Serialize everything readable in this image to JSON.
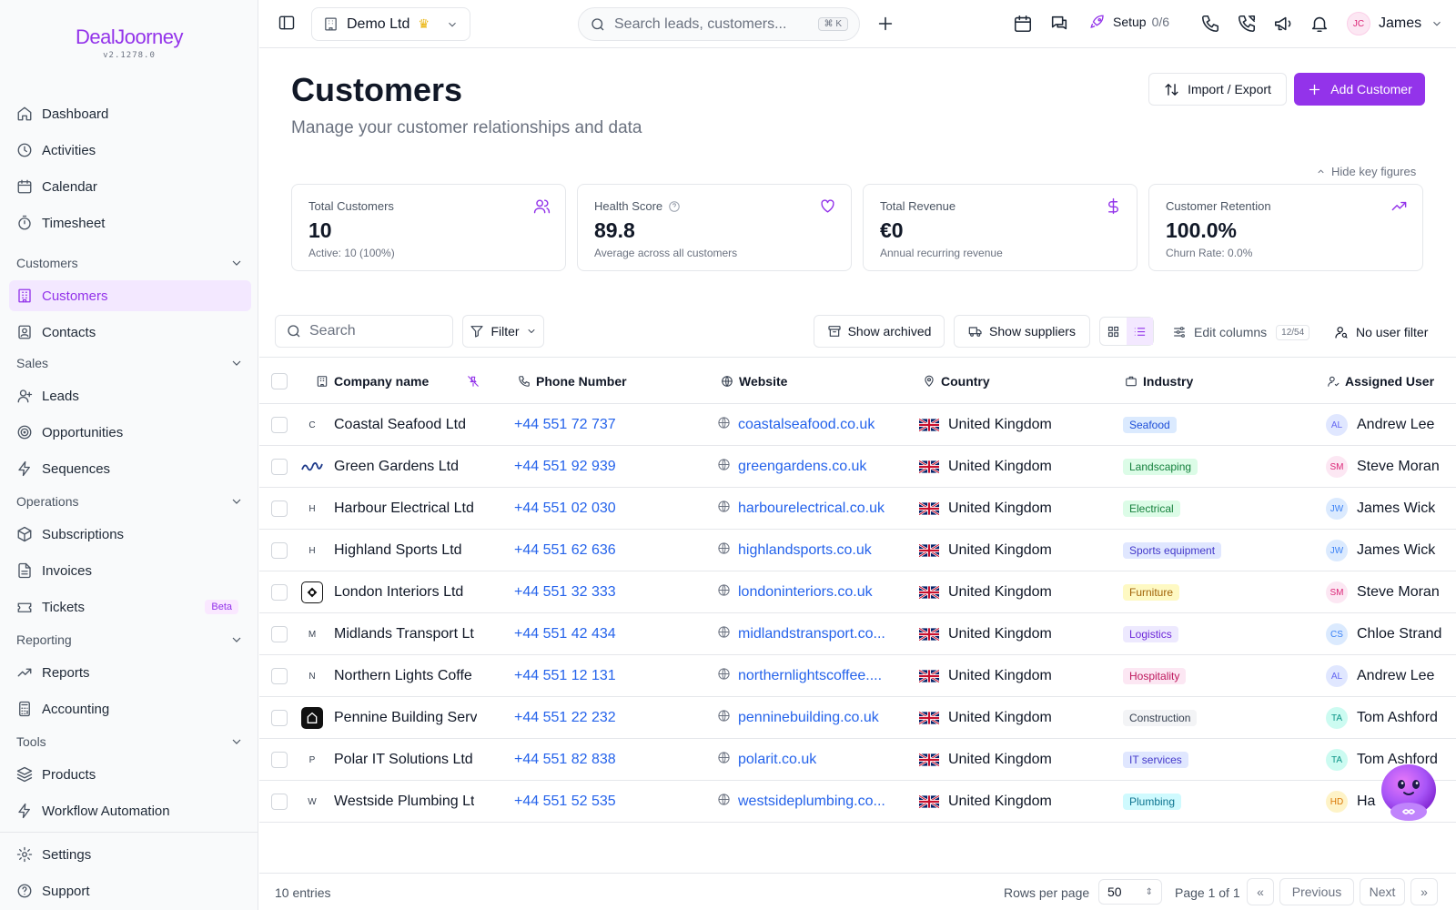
{
  "app": {
    "logo": "DealJoorney",
    "version": "v2.1278.0"
  },
  "sidebar": {
    "items": [
      {
        "label": "Dashboard",
        "icon": "home-icon"
      },
      {
        "label": "Activities",
        "icon": "clock-icon"
      },
      {
        "label": "Calendar",
        "icon": "calendar-icon"
      },
      {
        "label": "Timesheet",
        "icon": "timer-icon"
      },
      {
        "label": "Customers",
        "icon": "building-icon",
        "active": true
      },
      {
        "label": "Contacts",
        "icon": "contact-icon"
      },
      {
        "label": "Leads",
        "icon": "user-plus-icon"
      },
      {
        "label": "Opportunities",
        "icon": "target-icon"
      },
      {
        "label": "Sequences",
        "icon": "bolt-icon"
      },
      {
        "label": "Subscriptions",
        "icon": "package-icon"
      },
      {
        "label": "Invoices",
        "icon": "file-icon"
      },
      {
        "label": "Tickets",
        "icon": "ticket-icon",
        "badge": "Beta"
      },
      {
        "label": "Reports",
        "icon": "trend-icon"
      },
      {
        "label": "Accounting",
        "icon": "calculator-icon"
      },
      {
        "label": "Products",
        "icon": "layers-icon"
      },
      {
        "label": "Workflow Automation",
        "icon": "bolt-icon"
      },
      {
        "label": "Settings",
        "icon": "gear-icon"
      },
      {
        "label": "Support",
        "icon": "help-icon"
      }
    ],
    "sections": [
      "Customers",
      "Sales",
      "Operations",
      "Reporting",
      "Tools"
    ]
  },
  "topbar": {
    "workspace": "Demo Ltd",
    "search_placeholder": "Search leads, customers...",
    "kbd": "⌘ K",
    "setup_label": "Setup",
    "setup_progress": "0/6",
    "user_initials": "JC",
    "user_name": "James"
  },
  "page": {
    "title": "Customers",
    "subtitle": "Manage your customer relationships and data",
    "import_export": "Import / Export",
    "add_customer": "Add Customer",
    "hide_key_figures": "Hide key figures"
  },
  "cards": [
    {
      "label": "Total Customers",
      "value": "10",
      "note": "Active: 10 (100%)",
      "icon": "users-icon"
    },
    {
      "label": "Health Score",
      "value": "89.8",
      "note": "Average across all customers",
      "icon": "heart-icon"
    },
    {
      "label": "Total Revenue",
      "value": "€0",
      "note": "Annual recurring revenue",
      "icon": "dollar-icon"
    },
    {
      "label": "Customer Retention",
      "value": "100.0%",
      "note": "Churn Rate: 0.0%",
      "icon": "trending-up-icon"
    }
  ],
  "toolbar": {
    "search_placeholder": "Search",
    "filter": "Filter",
    "show_archived": "Show archived",
    "show_suppliers": "Show suppliers",
    "edit_columns": "Edit columns",
    "columns_count": "12/54",
    "user_filter": "No user filter"
  },
  "table": {
    "headers": [
      "Company name",
      "Phone Number",
      "Website",
      "Country",
      "Industry",
      "Assigned User"
    ],
    "rows": [
      {
        "logo": "C",
        "logo_style": "letter",
        "company": "Coastal Seafood Ltd",
        "phone": "+44 551 72 737",
        "website": "coastalseafood.co.uk",
        "country": "United Kingdom",
        "industry": "Seafood",
        "user_initials": "AL",
        "user": "Andrew Lee"
      },
      {
        "logo": "",
        "logo_style": "script",
        "company": "Green Gardens Ltd",
        "phone": "+44 551 92 939",
        "website": "greengardens.co.uk",
        "country": "United Kingdom",
        "industry": "Landscaping",
        "user_initials": "SM",
        "user": "Steve Moran"
      },
      {
        "logo": "H",
        "logo_style": "letter",
        "company": "Harbour Electrical Ltd",
        "phone": "+44 551 02 030",
        "website": "harbourelectrical.co.uk",
        "country": "United Kingdom",
        "industry": "Electrical",
        "user_initials": "JW",
        "user": "James Wick"
      },
      {
        "logo": "H",
        "logo_style": "letter",
        "company": "Highland Sports Ltd",
        "phone": "+44 551 62 636",
        "website": "highlandsports.co.uk",
        "country": "United Kingdom",
        "industry": "Sports equipment",
        "user_initials": "JW",
        "user": "James Wick"
      },
      {
        "logo": "",
        "logo_style": "ring",
        "company": "London Interiors Ltd",
        "phone": "+44 551 32 333",
        "website": "londoninteriors.co.uk",
        "country": "United Kingdom",
        "industry": "Furniture",
        "user_initials": "SM",
        "user": "Steve Moran"
      },
      {
        "logo": "M",
        "logo_style": "letter",
        "company": "Midlands Transport Lt",
        "phone": "+44 551 42 434",
        "website": "midlandstransport.co...",
        "country": "United Kingdom",
        "industry": "Logistics",
        "user_initials": "CS",
        "user": "Chloe Strand"
      },
      {
        "logo": "N",
        "logo_style": "letter",
        "company": "Northern Lights Coffe",
        "phone": "+44 551 12 131",
        "website": "northernlightscoffee....",
        "country": "United Kingdom",
        "industry": "Hospitality",
        "user_initials": "AL",
        "user": "Andrew Lee"
      },
      {
        "logo": "",
        "logo_style": "dark",
        "company": "Pennine Building Serv",
        "phone": "+44 551 22 232",
        "website": "penninebuilding.co.uk",
        "country": "United Kingdom",
        "industry": "Construction",
        "user_initials": "TA",
        "user": "Tom Ashford"
      },
      {
        "logo": "P",
        "logo_style": "letter",
        "company": "Polar IT Solutions Ltd",
        "phone": "+44 551 82 838",
        "website": "polarit.co.uk",
        "country": "United Kingdom",
        "industry": "IT services",
        "user_initials": "TA",
        "user": "Tom Ashford"
      },
      {
        "logo": "W",
        "logo_style": "letter",
        "company": "Westside Plumbing Lt",
        "phone": "+44 551 52 535",
        "website": "westsideplumbing.co...",
        "country": "United Kingdom",
        "industry": "Plumbing",
        "user_initials": "HD",
        "user": "Ha"
      }
    ]
  },
  "footer": {
    "entries": "10 entries",
    "rows_per_page_label": "Rows per page",
    "rows_per_page": "50",
    "page_info": "Page 1 of 1",
    "previous": "Previous",
    "next": "Next"
  },
  "colors": {
    "accent": "#9333ea",
    "link": "#2563eb"
  }
}
